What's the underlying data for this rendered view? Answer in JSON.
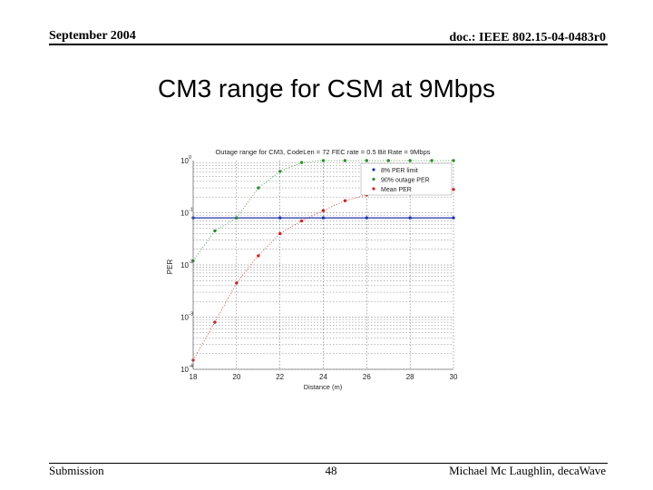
{
  "header": {
    "date": "September 2004",
    "doc_id": "doc.: IEEE 802.15-04-0483r0"
  },
  "slide": {
    "title": "CM3 range for CSM at 9Mbps"
  },
  "footer": {
    "left": "Submission",
    "page": "48",
    "author": "Michael Mc Laughlin, decaWave"
  },
  "colors": {
    "per_limit": "#2233aa",
    "outage": "#2e8b2e",
    "mean": "#cc2222",
    "grid": "#555555"
  },
  "chart_data": {
    "type": "scatter",
    "title": "Outage range for CM3, CodeLen = 72 FEC rate = 0.5 Bit Rate = 9Mbps",
    "xlabel": "Distance (m)",
    "ylabel": "PER",
    "yscale": "log",
    "xlim": [
      18,
      30
    ],
    "ylim": [
      0.0001,
      1
    ],
    "grid": true,
    "legend_position": "top-right",
    "x_ticks": [
      "18",
      "20",
      "22",
      "24",
      "26",
      "28",
      "30"
    ],
    "y_ticks": [
      {
        "base": "10",
        "exp": "0",
        "value": 1
      },
      {
        "base": "10",
        "exp": "-1",
        "value": 0.1
      },
      {
        "base": "10",
        "exp": "-2",
        "value": 0.01
      },
      {
        "base": "10",
        "exp": "-3",
        "value": 0.001
      },
      {
        "base": "10",
        "exp": "-4",
        "value": 0.0001
      }
    ],
    "x": [
      18,
      19,
      20,
      21,
      22,
      23,
      24,
      25,
      26,
      27,
      28,
      29,
      30
    ],
    "series": [
      {
        "name": "8% PER limit",
        "marker": "dot",
        "line": "solid",
        "values": [
          0.08,
          0.08,
          0.08,
          0.08,
          0.08,
          0.08,
          0.08,
          0.08,
          0.08,
          0.08,
          0.08,
          0.08,
          0.08
        ]
      },
      {
        "name": "90% outage PER",
        "marker": "dot",
        "line": "dotted",
        "values": [
          0.012,
          0.045,
          0.08,
          0.3,
          0.62,
          0.92,
          1,
          1,
          1,
          1,
          1,
          1,
          1
        ]
      },
      {
        "name": "Mean PER",
        "marker": "dot",
        "line": "dotted",
        "values": [
          0.00015,
          0.0008,
          0.0045,
          0.015,
          0.04,
          0.07,
          0.11,
          0.17,
          0.22,
          0.3,
          0.4,
          0.55,
          0.28
        ]
      }
    ]
  }
}
